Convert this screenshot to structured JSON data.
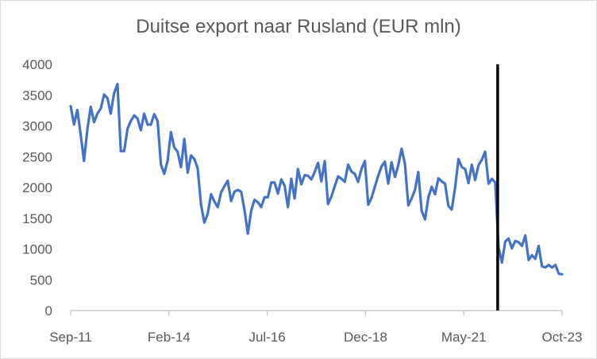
{
  "chart_data": {
    "type": "line",
    "title": "Duitse export naar Rusland (EUR mln)",
    "xlabel": "",
    "ylabel": "",
    "ylim": [
      0,
      4000
    ],
    "yticks": [
      0,
      500,
      1000,
      1500,
      2000,
      2500,
      3000,
      3500,
      4000
    ],
    "xtick_labels": [
      "Sep-11",
      "Feb-14",
      "Jul-16",
      "Dec-18",
      "May-21",
      "Oct-23"
    ],
    "x_start": "Sep-11",
    "x_end": "Oct-23",
    "vertical_marker": {
      "x": "Mar-22",
      "color": "#000000"
    },
    "line_color": "#4472c4",
    "grid": false,
    "series": [
      {
        "values": [
          3320,
          3020,
          3260,
          2860,
          2430,
          2950,
          3310,
          3060,
          3200,
          3280,
          3510,
          3450,
          3200,
          3530,
          3680,
          2590,
          2590,
          2950,
          3080,
          3170,
          3120,
          2930,
          3200,
          3020,
          3020,
          3190,
          3080,
          2370,
          2220,
          2430,
          2900,
          2650,
          2580,
          2330,
          2790,
          2240,
          2520,
          2460,
          2310,
          1720,
          1430,
          1570,
          1890,
          1770,
          1680,
          1920,
          2020,
          2110,
          1780,
          1930,
          1960,
          1930,
          1630,
          1250,
          1620,
          1800,
          1760,
          1680,
          1840,
          1840,
          2080,
          2080,
          1900,
          2130,
          2030,
          1680,
          2140,
          1820,
          2300,
          2050,
          2200,
          2190,
          2130,
          2250,
          2400,
          2100,
          2430,
          1730,
          1850,
          2020,
          2180,
          2140,
          2090,
          2370,
          2260,
          2220,
          2090,
          2300,
          2430,
          1720,
          1830,
          2010,
          2190,
          2340,
          2420,
          2060,
          2410,
          2170,
          2360,
          2630,
          2380,
          1710,
          1820,
          1960,
          2250,
          1620,
          1480,
          1840,
          2010,
          1890,
          2150,
          2100,
          2060,
          1700,
          1640,
          2000,
          2460,
          2330,
          2300,
          2070,
          2370,
          2120,
          2360,
          2450,
          2580,
          2060,
          2140,
          2080,
          1030,
          780,
          1120,
          1170,
          1010,
          1130,
          1110,
          1050,
          1220,
          820,
          900,
          840,
          1050,
          720,
          700,
          740,
          700,
          740,
          600,
          590
        ]
      }
    ]
  }
}
